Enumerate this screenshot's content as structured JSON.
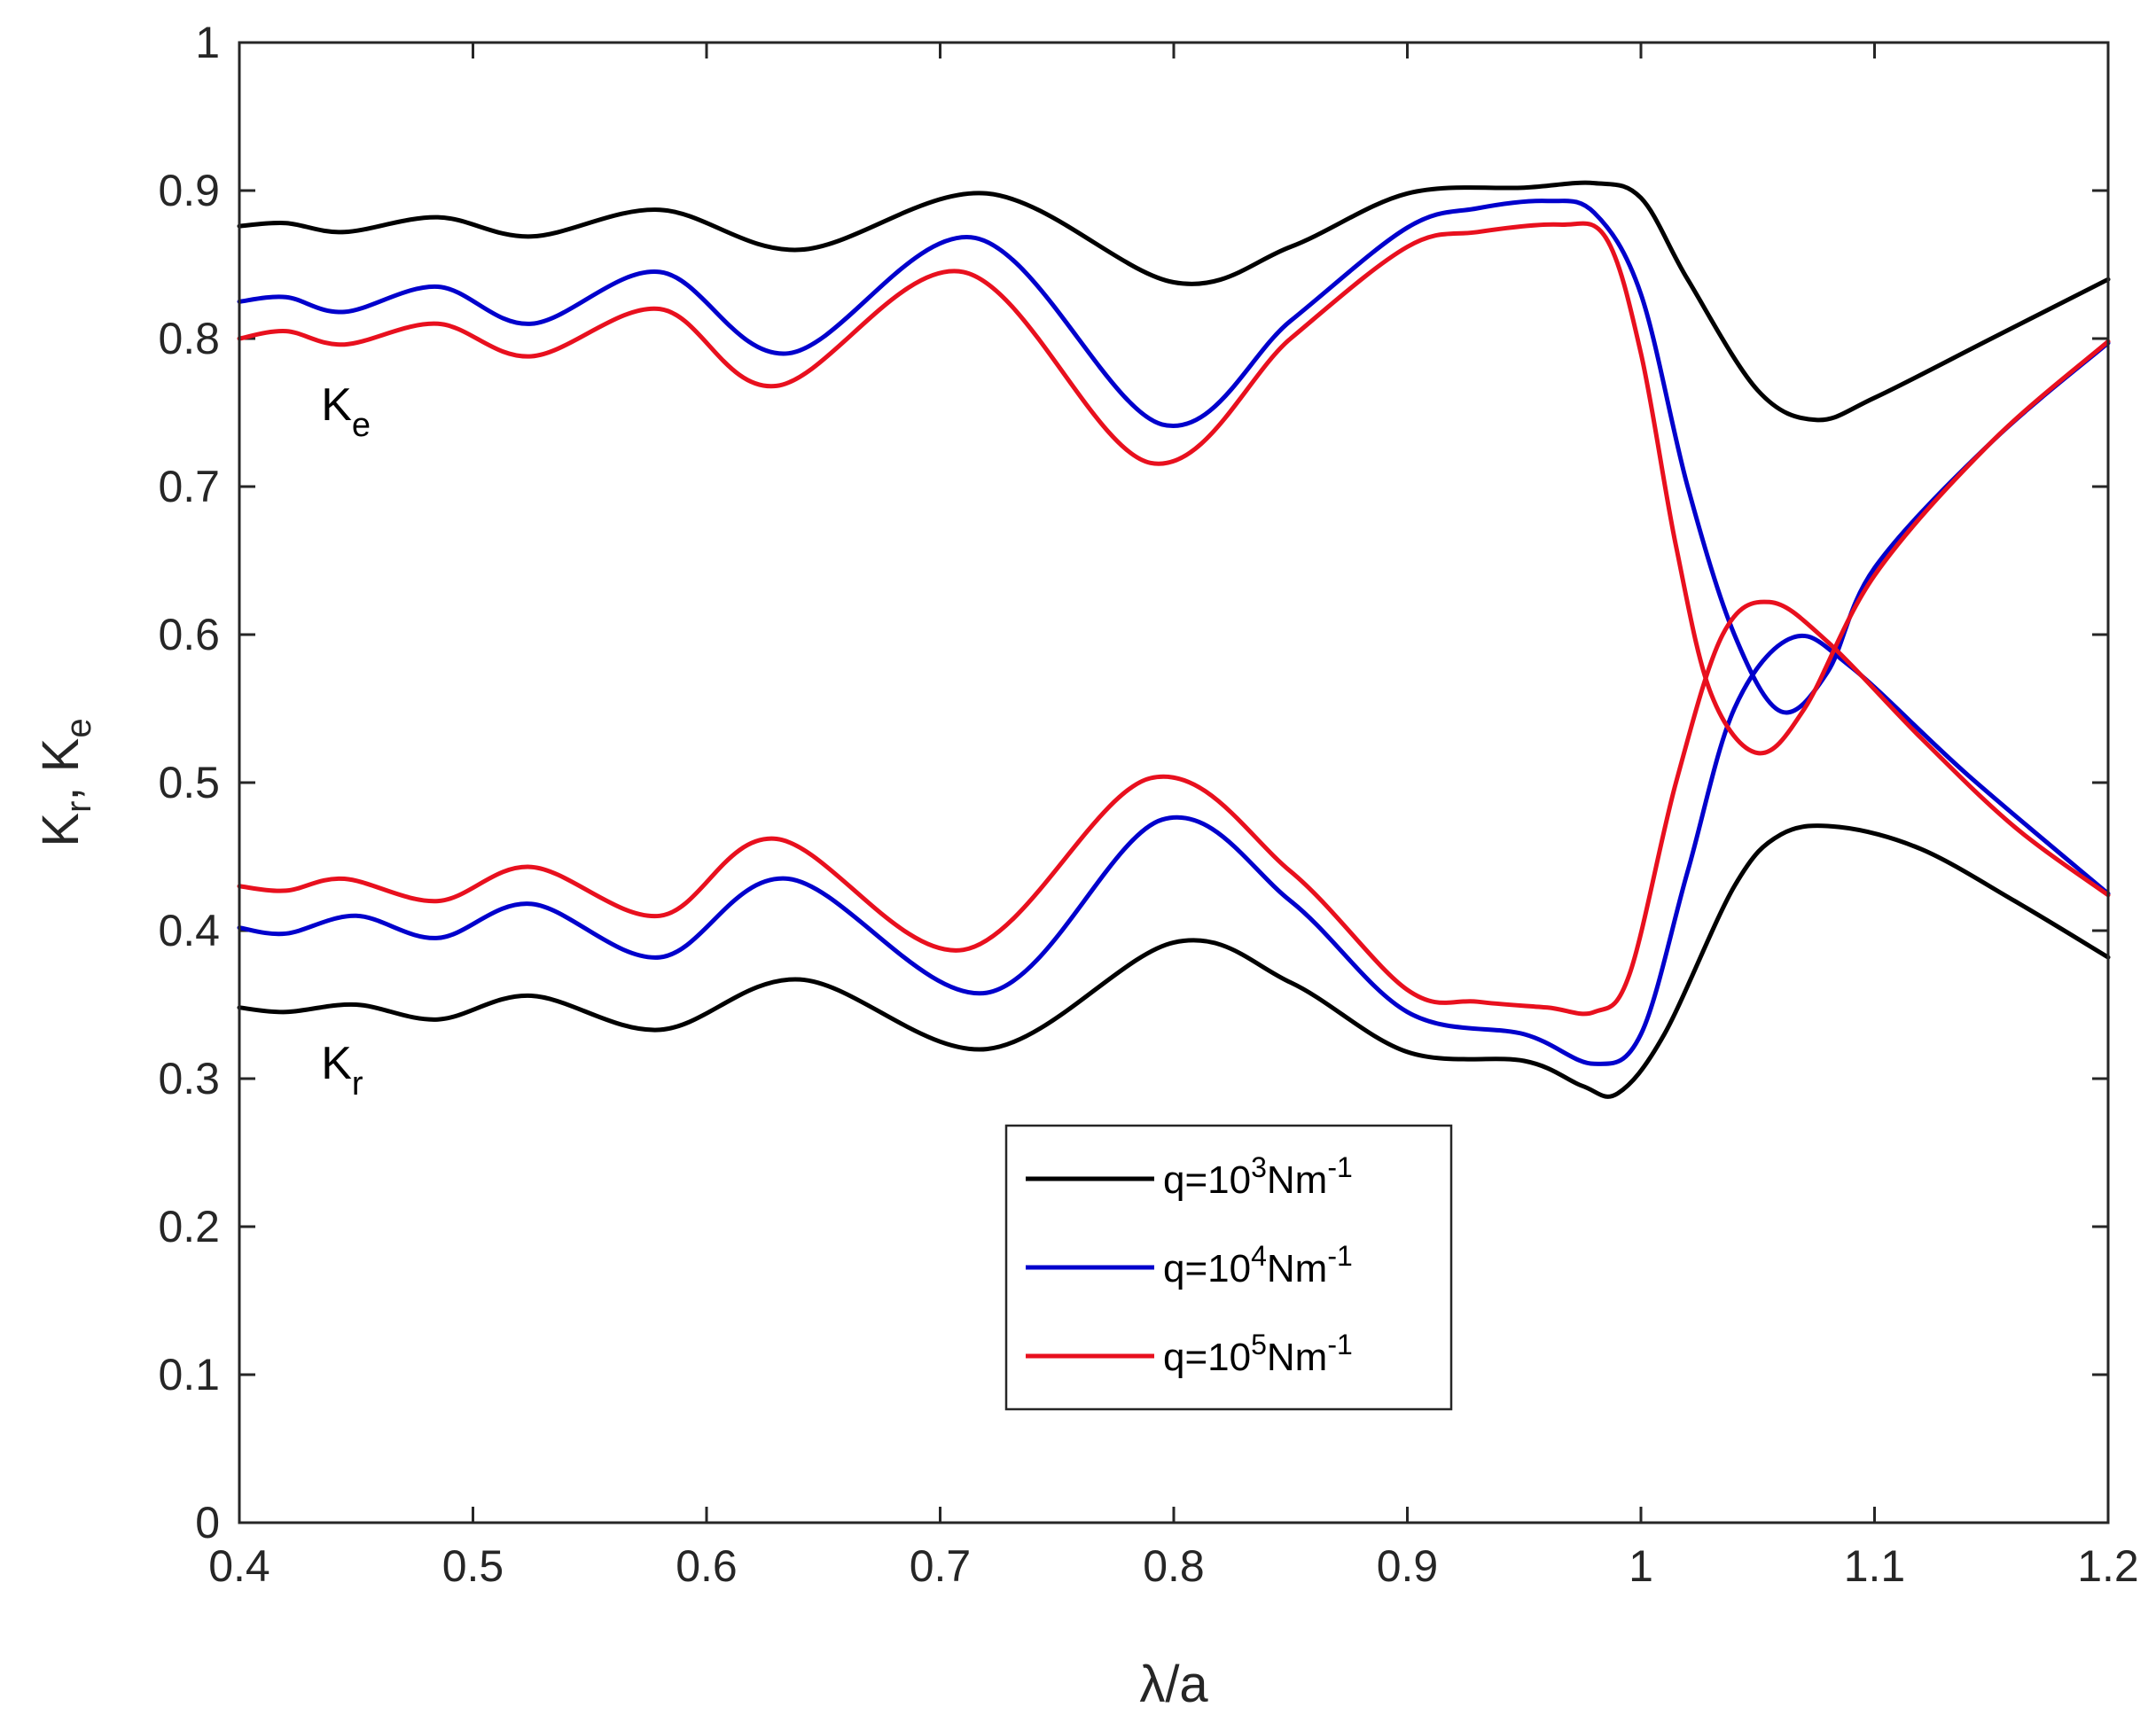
{
  "chart_data": {
    "type": "line",
    "title": "",
    "xlabel": "λ/a",
    "ylabel": "K_r, K_e",
    "xlim": [
      0.4,
      1.2
    ],
    "ylim": [
      0,
      1
    ],
    "xticks": [
      "0.4",
      "0.5",
      "0.6",
      "0.7",
      "0.8",
      "0.9",
      "1",
      "1.1",
      "1.2"
    ],
    "yticks": [
      "0",
      "0.1",
      "0.2",
      "0.3",
      "0.4",
      "0.5",
      "0.6",
      "0.7",
      "0.8",
      "0.9",
      "1"
    ],
    "grid": false,
    "legend_position": "bottom-center",
    "annotations": [
      {
        "base": "K",
        "sub": "e",
        "x": 0.435,
        "y": 0.745
      },
      {
        "base": "K",
        "sub": "r",
        "x": 0.435,
        "y": 0.3
      }
    ],
    "series": [
      {
        "name": "q=10^3Nm^-1",
        "label_base": "q=10",
        "label_exp": "3",
        "label_unit": "Nm",
        "label_unit_exp": "-1",
        "color": "#000000",
        "group": "Ke",
        "x": [
          0.4,
          0.42,
          0.445,
          0.485,
          0.525,
          0.58,
          0.64,
          0.72,
          0.8,
          0.85,
          0.9,
          0.95,
          0.98,
          1.0,
          1.02,
          1.05,
          1.075,
          1.1,
          1.15,
          1.2
        ],
        "y": [
          0.876,
          0.878,
          0.872,
          0.882,
          0.869,
          0.887,
          0.86,
          0.898,
          0.838,
          0.862,
          0.898,
          0.902,
          0.905,
          0.895,
          0.84,
          0.765,
          0.745,
          0.76,
          0.8,
          0.84
        ]
      },
      {
        "name": "q=10^3Nm^-1 (K_r)",
        "color": "#000000",
        "group": "Kr",
        "x": [
          0.4,
          0.42,
          0.45,
          0.485,
          0.525,
          0.58,
          0.64,
          0.72,
          0.8,
          0.85,
          0.9,
          0.95,
          0.975,
          0.99,
          1.01,
          1.04,
          1.06,
          1.085,
          1.12,
          1.16,
          1.2
        ],
        "y": [
          0.348,
          0.345,
          0.35,
          0.34,
          0.356,
          0.333,
          0.367,
          0.32,
          0.392,
          0.365,
          0.318,
          0.312,
          0.295,
          0.29,
          0.33,
          0.43,
          0.465,
          0.47,
          0.455,
          0.42,
          0.382
        ]
      },
      {
        "name": "q=10^4Nm^-1",
        "label_base": "q=10",
        "label_exp": "4",
        "label_unit": "Nm",
        "label_unit_exp": "-1",
        "color": "#0000cc",
        "group": "Ke",
        "x": [
          0.4,
          0.42,
          0.445,
          0.485,
          0.525,
          0.58,
          0.635,
          0.715,
          0.795,
          0.85,
          0.9,
          0.93,
          0.96,
          0.98,
          1.0,
          1.02,
          1.04,
          1.06,
          1.08,
          1.1,
          1.15,
          1.2
        ],
        "y": [
          0.825,
          0.828,
          0.818,
          0.835,
          0.81,
          0.845,
          0.79,
          0.868,
          0.742,
          0.812,
          0.875,
          0.888,
          0.893,
          0.885,
          0.83,
          0.7,
          0.6,
          0.548,
          0.575,
          0.645,
          0.73,
          0.797
        ]
      },
      {
        "name": "q=10^4Nm^-1 (K_r)",
        "color": "#0000cc",
        "group": "Kr",
        "x": [
          0.4,
          0.42,
          0.45,
          0.485,
          0.525,
          0.58,
          0.635,
          0.72,
          0.795,
          0.85,
          0.9,
          0.95,
          0.98,
          1.0,
          1.02,
          1.04,
          1.065,
          1.09,
          1.14,
          1.2
        ],
        "y": [
          0.402,
          0.398,
          0.41,
          0.395,
          0.418,
          0.382,
          0.435,
          0.358,
          0.475,
          0.42,
          0.345,
          0.33,
          0.31,
          0.33,
          0.44,
          0.55,
          0.598,
          0.578,
          0.505,
          0.425
        ]
      },
      {
        "name": "q=10^5Nm^-1",
        "label_base": "q=10",
        "label_exp": "5",
        "label_unit": "Nm",
        "label_unit_exp": "-1",
        "color": "#e8101e",
        "group": "Ke",
        "x": [
          0.4,
          0.42,
          0.445,
          0.485,
          0.525,
          0.58,
          0.63,
          0.71,
          0.79,
          0.85,
          0.9,
          0.93,
          0.965,
          0.985,
          1.0,
          1.015,
          1.03,
          1.05,
          1.07,
          1.1,
          1.15,
          1.2
        ],
        "y": [
          0.8,
          0.805,
          0.796,
          0.81,
          0.788,
          0.82,
          0.768,
          0.845,
          0.716,
          0.8,
          0.862,
          0.872,
          0.877,
          0.868,
          0.79,
          0.66,
          0.56,
          0.52,
          0.55,
          0.64,
          0.73,
          0.798
        ]
      },
      {
        "name": "q=10^5Nm^-1 (K_r)",
        "color": "#e8101e",
        "group": "Kr",
        "x": [
          0.4,
          0.42,
          0.445,
          0.485,
          0.525,
          0.58,
          0.63,
          0.71,
          0.79,
          0.85,
          0.9,
          0.93,
          0.96,
          0.98,
          0.995,
          1.015,
          1.035,
          1.055,
          1.08,
          1.12,
          1.16,
          1.2
        ],
        "y": [
          0.43,
          0.427,
          0.435,
          0.42,
          0.443,
          0.41,
          0.462,
          0.387,
          0.503,
          0.44,
          0.36,
          0.352,
          0.348,
          0.345,
          0.37,
          0.5,
          0.6,
          0.622,
          0.595,
          0.53,
          0.47,
          0.424
        ]
      }
    ]
  }
}
